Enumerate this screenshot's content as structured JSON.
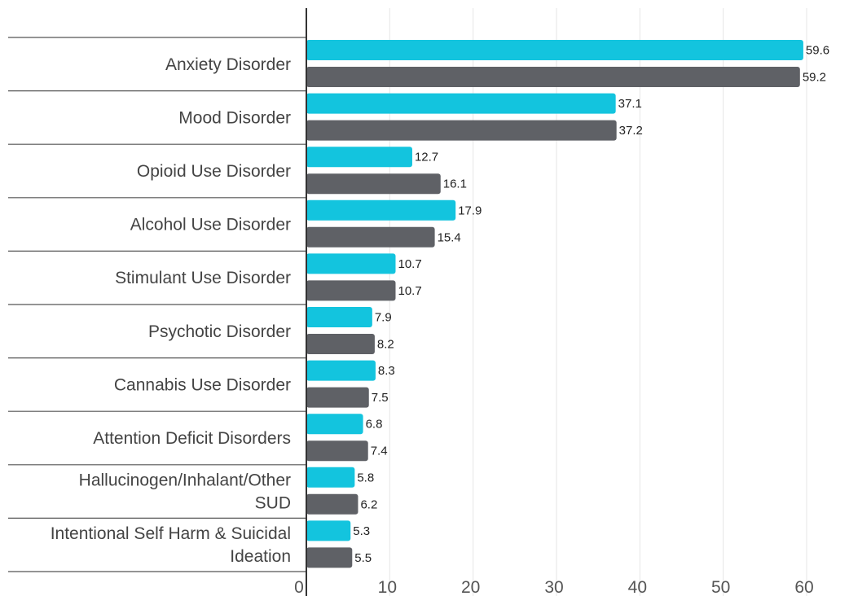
{
  "chart_data": {
    "type": "bar",
    "orientation": "horizontal",
    "categories": [
      [
        "Anxiety Disorder"
      ],
      [
        "Mood Disorder"
      ],
      [
        "Opioid Use Disorder"
      ],
      [
        "Alcohol Use Disorder"
      ],
      [
        "Stimulant Use Disorder"
      ],
      [
        "Psychotic Disorder"
      ],
      [
        "Cannabis Use Disorder"
      ],
      [
        "Attention Deficit Disorders"
      ],
      [
        "Hallucinogen/Inhalant/Other",
        "SUD"
      ],
      [
        "Intentional Self Harm & Suicidal",
        "Ideation"
      ]
    ],
    "series": [
      {
        "color": "#13c4de",
        "values": [
          59.6,
          37.1,
          12.7,
          17.9,
          10.7,
          7.9,
          8.3,
          6.8,
          5.8,
          5.3
        ]
      },
      {
        "color": "#5f6166",
        "values": [
          59.2,
          37.2,
          16.1,
          15.4,
          10.7,
          8.2,
          7.5,
          7.4,
          6.2,
          5.5
        ]
      }
    ],
    "value_labels": [
      [
        "59.6",
        "37.1",
        "12.7",
        "17.9",
        "10.7",
        "7.9",
        "8.3",
        "6.8",
        "5.8",
        "5.3"
      ],
      [
        "59.2",
        "37.2",
        "16.1",
        "15.4",
        "10.7",
        "8.2",
        "7.5",
        "7.4",
        "6.2",
        "5.5"
      ]
    ],
    "x_ticks": [
      "0",
      "10",
      "20",
      "30",
      "40",
      "50",
      "60"
    ],
    "xlim": [
      0,
      60
    ],
    "gridlines": true,
    "legend": false
  }
}
